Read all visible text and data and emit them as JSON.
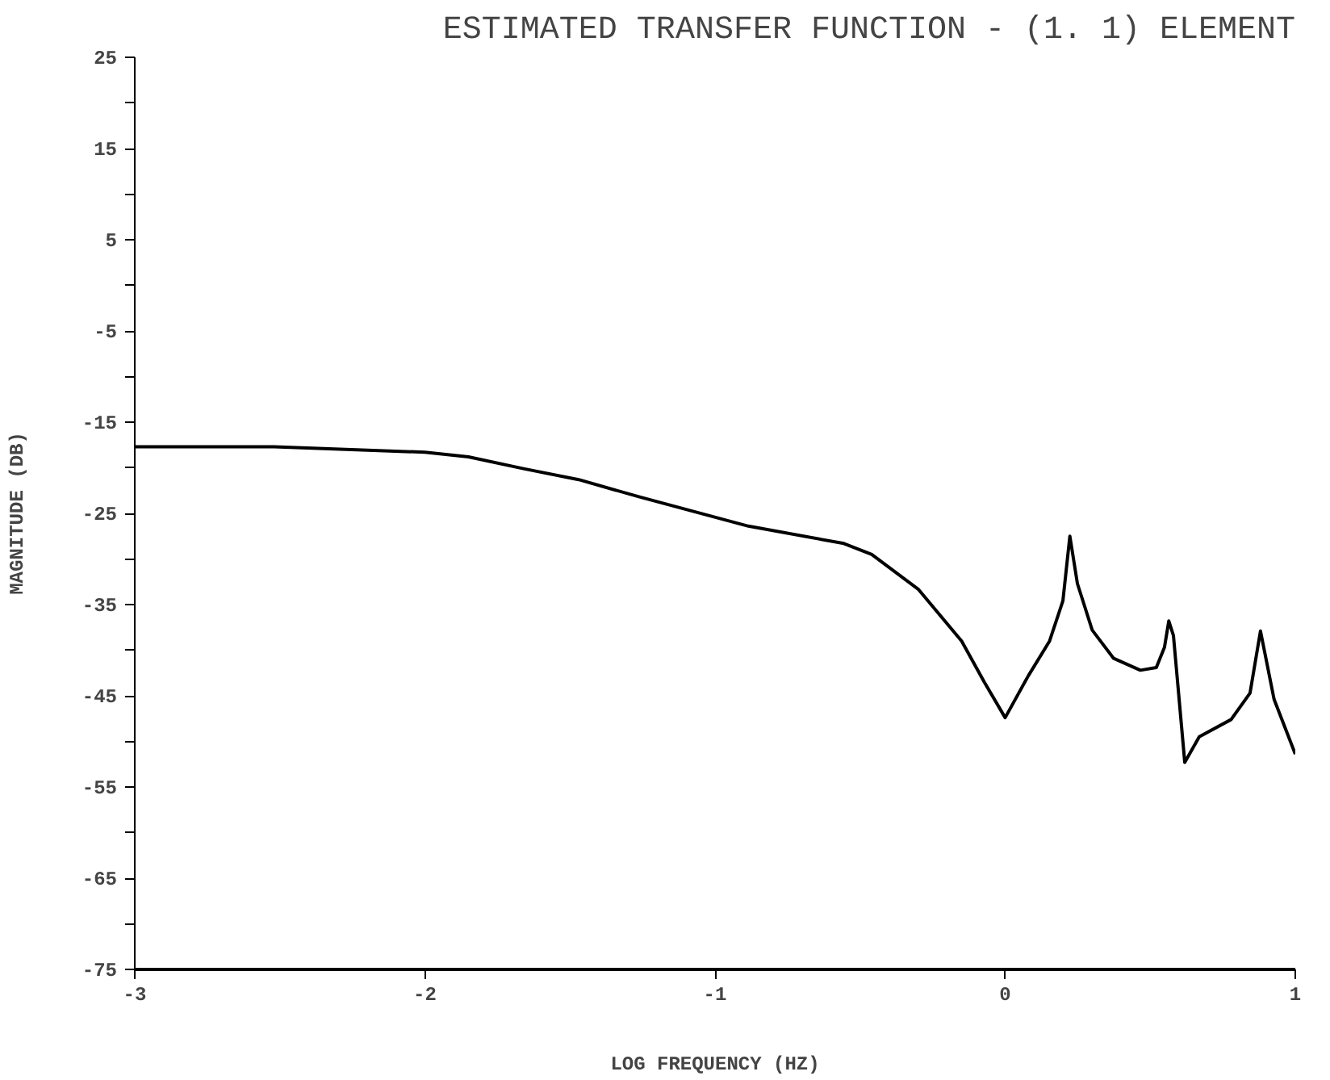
{
  "chart_data": {
    "type": "line",
    "title": "ESTIMATED TRANSFER FUNCTION - (1. 1) ELEMENT",
    "xlabel": "LOG FREQUENCY (HZ)",
    "ylabel": "MAGNITUDE (DB)",
    "x": [
      -3,
      -2.52,
      -2.0,
      -1.85,
      -1.66,
      -1.47,
      -1.26,
      -0.885,
      -0.556,
      -0.46,
      -0.3,
      -0.15,
      -0.072,
      0.0,
      0.08,
      0.153,
      0.199,
      0.223,
      0.249,
      0.3,
      0.374,
      0.466,
      0.521,
      0.549,
      0.564,
      0.58,
      0.619,
      0.669,
      0.779,
      0.844,
      0.88,
      0.927,
      1.0
    ],
    "series": [
      {
        "color": "#000000",
        "values": [
          -17.7,
          -17.7,
          -18.3,
          -18.8,
          -20.1,
          -21.3,
          -23.2,
          -26.4,
          -28.3,
          -29.5,
          -33.3,
          -39.0,
          -43.5,
          -47.4,
          -42.8,
          -39.0,
          -34.6,
          -27.5,
          -32.7,
          -37.8,
          -40.9,
          -42.2,
          -41.9,
          -39.7,
          -36.8,
          -38.4,
          -52.3,
          -49.5,
          -47.6,
          -44.7,
          -37.9,
          -45.4,
          -51.4
        ]
      }
    ],
    "xlim": [
      -3,
      1
    ],
    "xticks": [
      -3,
      -2,
      -1,
      0,
      1
    ],
    "ylim": [
      -75,
      25
    ],
    "yticks": [
      25,
      {
        "value": 20,
        "label": null
      },
      15,
      {
        "value": 10,
        "label": null
      },
      5,
      {
        "value": 0,
        "label": null
      },
      -5,
      {
        "value": -10,
        "label": null
      },
      -15,
      {
        "value": -20,
        "label": null
      },
      -25,
      {
        "value": -30,
        "label": null
      },
      -35,
      {
        "value": -40,
        "label": null
      },
      -45,
      {
        "value": -50,
        "label": null
      },
      -55,
      {
        "value": -60,
        "label": null
      },
      -65,
      {
        "value": -70,
        "label": null
      },
      -75
    ],
    "grid": false,
    "marker": "none",
    "line_style": "solid"
  }
}
